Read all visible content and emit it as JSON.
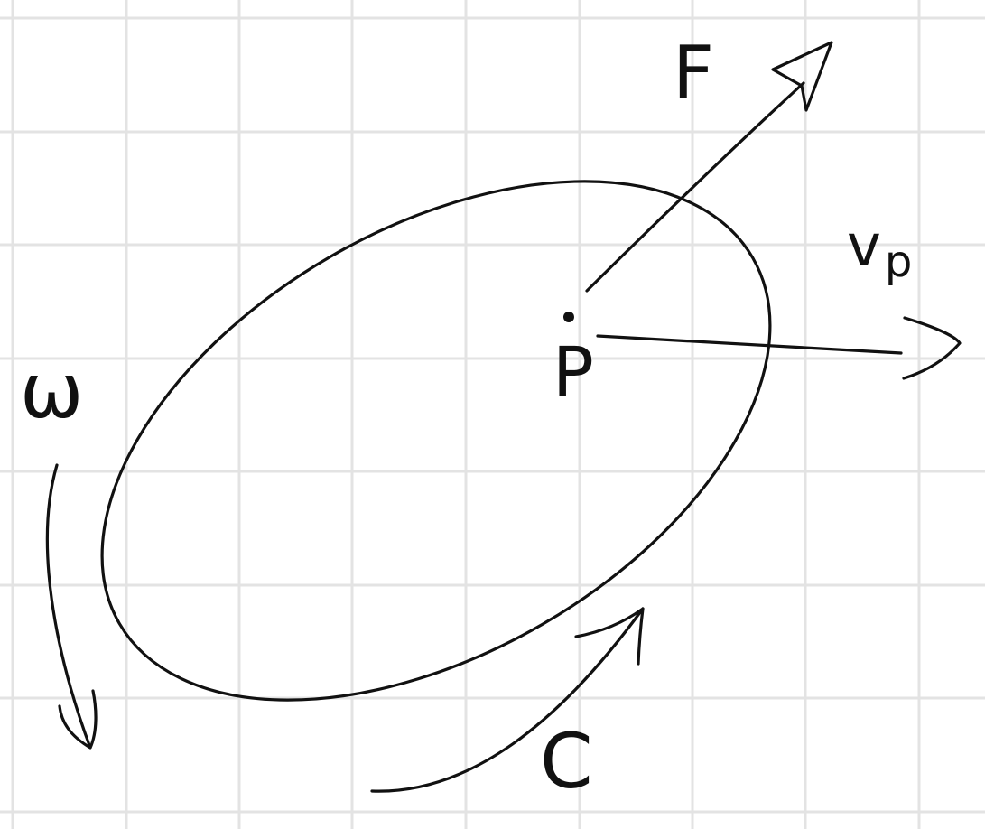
{
  "canvas": {
    "background_color": "#ffffff",
    "grid_color": "#e3e3e3",
    "ink_color": "#111111",
    "grid": true
  },
  "labels": {
    "force": "F",
    "velocity": "v",
    "velocity_subscript": "p",
    "point": "P",
    "angular_velocity": "ω",
    "curve": "C"
  }
}
